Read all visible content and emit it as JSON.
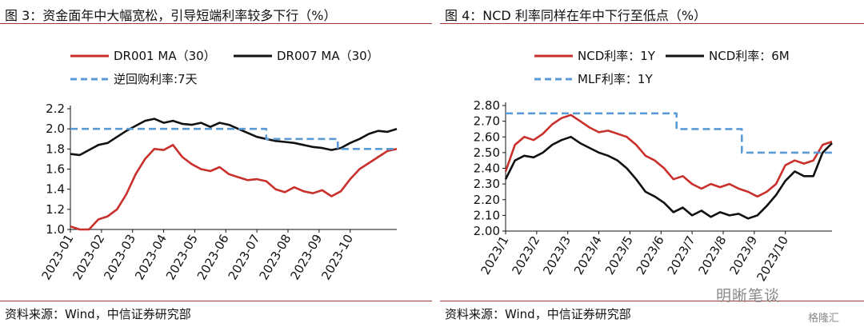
{
  "charts": {
    "left": {
      "title": "图 3：资金面年中大幅宽松，引导短端利率较多下行（%）",
      "source": "资料来源：Wind，中信证券研究部"
    },
    "right": {
      "title": "图 4：NCD 利率同样在年中下行至低点（%）",
      "source": "资料来源：Wind，中信证券研究部"
    }
  },
  "watermark": {
    "text": "明晰笔谈",
    "sub": "格隆汇"
  },
  "chart_data": [
    {
      "type": "line",
      "title": "图 3：资金面年中大幅宽松，引导短端利率较多下行（%）",
      "xlabel": "",
      "ylabel": "",
      "ylim": [
        1.0,
        2.2
      ],
      "yticks": [
        "2.2",
        "2.0",
        "1.8",
        "1.6",
        "1.4",
        "1.2",
        "1.0"
      ],
      "categories": [
        "2023-01",
        "2023-02",
        "2023-03",
        "2023-04",
        "2023-05",
        "2023-06",
        "2023-07",
        "2023-08",
        "2023-09",
        "2023-10"
      ],
      "legend": "top",
      "series": [
        {
          "name": "DR001 MA（30）",
          "color": "#c9302c",
          "style": "solid",
          "x": [
            0.0,
            0.3,
            0.6,
            0.9,
            1.2,
            1.5,
            1.8,
            2.1,
            2.4,
            2.7,
            3.0,
            3.3,
            3.6,
            3.9,
            4.2,
            4.5,
            4.8,
            5.1,
            5.4,
            5.7,
            6.0,
            6.3,
            6.6,
            6.9,
            7.2,
            7.5,
            7.8,
            8.1,
            8.4,
            8.7,
            9.0,
            9.3,
            9.6,
            9.9,
            10.2,
            10.5
          ],
          "values": [
            1.03,
            1.0,
            1.0,
            1.1,
            1.13,
            1.2,
            1.35,
            1.55,
            1.7,
            1.8,
            1.79,
            1.84,
            1.72,
            1.65,
            1.6,
            1.58,
            1.62,
            1.55,
            1.52,
            1.49,
            1.5,
            1.48,
            1.4,
            1.37,
            1.42,
            1.38,
            1.36,
            1.39,
            1.33,
            1.38,
            1.5,
            1.6,
            1.66,
            1.72,
            1.78,
            1.8
          ]
        },
        {
          "name": "DR007 MA（30）",
          "color": "#111111",
          "style": "solid",
          "x": [
            0.0,
            0.3,
            0.6,
            0.9,
            1.2,
            1.5,
            1.8,
            2.1,
            2.4,
            2.7,
            3.0,
            3.3,
            3.6,
            3.9,
            4.2,
            4.5,
            4.8,
            5.1,
            5.4,
            5.7,
            6.0,
            6.3,
            6.6,
            6.9,
            7.2,
            7.5,
            7.8,
            8.1,
            8.4,
            8.7,
            9.0,
            9.3,
            9.6,
            9.9,
            10.2,
            10.5
          ],
          "values": [
            1.75,
            1.74,
            1.79,
            1.84,
            1.86,
            1.92,
            1.98,
            2.03,
            2.08,
            2.1,
            2.06,
            2.08,
            2.05,
            2.04,
            2.06,
            2.02,
            2.06,
            2.04,
            2.0,
            1.96,
            1.92,
            1.9,
            1.88,
            1.87,
            1.86,
            1.84,
            1.82,
            1.81,
            1.79,
            1.81,
            1.86,
            1.9,
            1.95,
            1.98,
            1.97,
            2.0
          ]
        },
        {
          "name": "逆回购利率:7天",
          "color": "#5b9bd5",
          "style": "dashed",
          "x": [
            0.0,
            6.3,
            6.3,
            8.6,
            8.6,
            10.5
          ],
          "values": [
            2.0,
            2.0,
            1.9,
            1.9,
            1.8,
            1.8
          ]
        }
      ]
    },
    {
      "type": "line",
      "title": "图 4：NCD 利率同样在年中下行至低点（%）",
      "xlabel": "",
      "ylabel": "",
      "ylim": [
        2.0,
        2.8
      ],
      "yticks": [
        "2.80",
        "2.70",
        "2.60",
        "2.50",
        "2.40",
        "2.30",
        "2.20",
        "2.10",
        "2.00"
      ],
      "categories": [
        "2023/1",
        "2023/2",
        "2023/3",
        "2023/4",
        "2023/5",
        "2023/6",
        "2023/7",
        "2023/8",
        "2023/9",
        "2023/10"
      ],
      "legend": "top",
      "series": [
        {
          "name": "NCD利率：1Y",
          "color": "#c9302c",
          "style": "solid",
          "x": [
            0.0,
            0.3,
            0.6,
            0.9,
            1.2,
            1.5,
            1.8,
            2.1,
            2.4,
            2.7,
            3.0,
            3.3,
            3.6,
            3.9,
            4.2,
            4.5,
            4.8,
            5.1,
            5.4,
            5.7,
            6.0,
            6.3,
            6.6,
            6.9,
            7.2,
            7.5,
            7.8,
            8.1,
            8.4,
            8.7,
            9.0,
            9.3,
            9.6,
            9.9,
            10.2,
            10.5
          ],
          "values": [
            2.38,
            2.55,
            2.6,
            2.58,
            2.62,
            2.68,
            2.72,
            2.74,
            2.7,
            2.66,
            2.63,
            2.64,
            2.62,
            2.6,
            2.55,
            2.48,
            2.45,
            2.4,
            2.33,
            2.35,
            2.3,
            2.27,
            2.3,
            2.28,
            2.3,
            2.27,
            2.25,
            2.22,
            2.25,
            2.3,
            2.42,
            2.45,
            2.43,
            2.45,
            2.55,
            2.57
          ]
        },
        {
          "name": "NCD利率：6M",
          "color": "#111111",
          "style": "solid",
          "x": [
            0.0,
            0.3,
            0.6,
            0.9,
            1.2,
            1.5,
            1.8,
            2.1,
            2.4,
            2.7,
            3.0,
            3.3,
            3.6,
            3.9,
            4.2,
            4.5,
            4.8,
            5.1,
            5.4,
            5.7,
            6.0,
            6.3,
            6.6,
            6.9,
            7.2,
            7.5,
            7.8,
            8.1,
            8.4,
            8.7,
            9.0,
            9.3,
            9.6,
            9.9,
            10.2,
            10.5
          ],
          "values": [
            2.33,
            2.45,
            2.48,
            2.47,
            2.5,
            2.55,
            2.58,
            2.6,
            2.56,
            2.53,
            2.5,
            2.48,
            2.45,
            2.4,
            2.33,
            2.25,
            2.22,
            2.18,
            2.12,
            2.15,
            2.1,
            2.13,
            2.09,
            2.12,
            2.1,
            2.11,
            2.08,
            2.1,
            2.16,
            2.23,
            2.32,
            2.38,
            2.35,
            2.35,
            2.5,
            2.56
          ]
        },
        {
          "name": "MLF利率：1Y",
          "color": "#5b9bd5",
          "style": "dashed",
          "x": [
            0.0,
            5.5,
            5.5,
            7.6,
            7.6,
            10.5
          ],
          "values": [
            2.75,
            2.75,
            2.65,
            2.65,
            2.5,
            2.5
          ]
        }
      ]
    }
  ]
}
